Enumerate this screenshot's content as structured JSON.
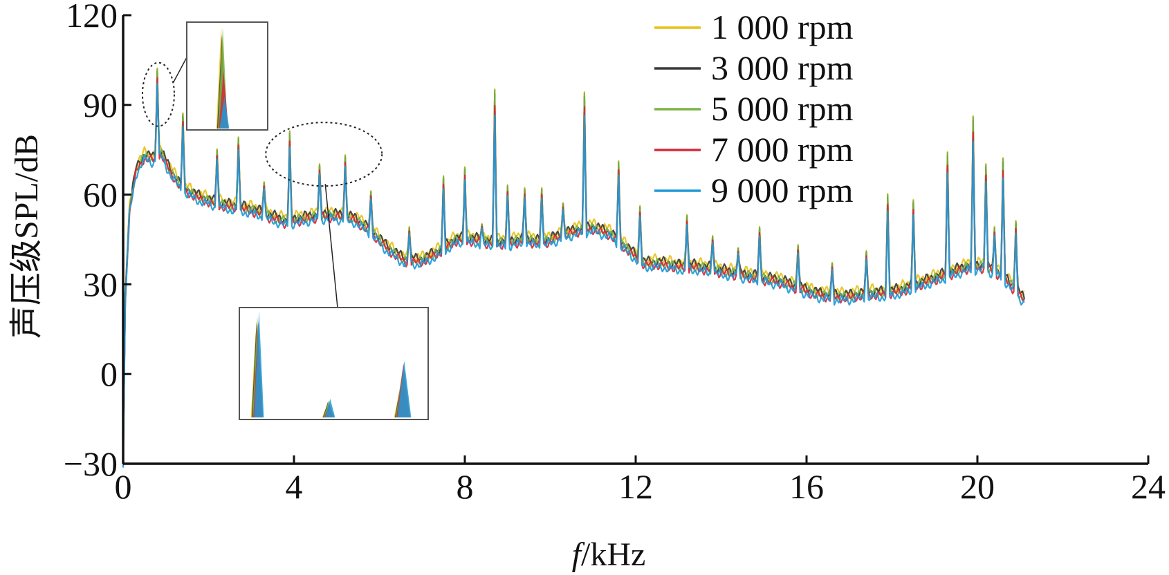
{
  "chart_data": {
    "type": "line",
    "xlabel_italic": "f",
    "xlabel_rest": "/kHz",
    "ylabel": "声压级SPL/dB",
    "xlim": [
      0,
      24
    ],
    "ylim": [
      -30,
      120
    ],
    "x_ticks": [
      "0",
      "4",
      "8",
      "12",
      "16",
      "20",
      "24"
    ],
    "y_ticks": [
      "−30",
      "0",
      "30",
      "60",
      "90",
      "120"
    ],
    "grid": false,
    "legend_position": "top-right",
    "baseline": [
      [
        0,
        -30
      ],
      [
        0.05,
        25
      ],
      [
        0.15,
        55
      ],
      [
        0.3,
        68
      ],
      [
        0.5,
        73
      ],
      [
        0.7,
        72
      ],
      [
        0.9,
        74
      ],
      [
        1.1,
        68
      ],
      [
        1.4,
        62
      ],
      [
        1.8,
        59
      ],
      [
        2.2,
        57
      ],
      [
        2.6,
        56
      ],
      [
        3.0,
        55
      ],
      [
        3.4,
        53
      ],
      [
        3.8,
        51
      ],
      [
        4.2,
        52
      ],
      [
        4.6,
        53
      ],
      [
        5.0,
        53
      ],
      [
        5.4,
        52
      ],
      [
        5.8,
        48
      ],
      [
        6.2,
        42
      ],
      [
        6.6,
        38
      ],
      [
        7.0,
        38
      ],
      [
        7.4,
        41
      ],
      [
        7.8,
        45
      ],
      [
        8.2,
        45
      ],
      [
        8.6,
        44
      ],
      [
        9.0,
        44
      ],
      [
        9.4,
        45
      ],
      [
        9.8,
        44
      ],
      [
        10.2,
        46
      ],
      [
        10.6,
        48
      ],
      [
        11.0,
        49
      ],
      [
        11.4,
        47
      ],
      [
        11.8,
        42
      ],
      [
        12.2,
        37
      ],
      [
        12.6,
        37
      ],
      [
        13.0,
        36
      ],
      [
        13.4,
        36
      ],
      [
        13.8,
        35
      ],
      [
        14.2,
        34
      ],
      [
        14.6,
        33
      ],
      [
        15.0,
        32
      ],
      [
        15.4,
        31
      ],
      [
        15.8,
        29
      ],
      [
        16.2,
        27
      ],
      [
        16.6,
        26
      ],
      [
        17.0,
        26
      ],
      [
        17.4,
        27
      ],
      [
        17.8,
        27
      ],
      [
        18.2,
        28
      ],
      [
        18.6,
        30
      ],
      [
        19.0,
        32
      ],
      [
        19.4,
        34
      ],
      [
        19.8,
        36
      ],
      [
        20.2,
        36
      ],
      [
        20.6,
        33
      ],
      [
        20.9,
        28
      ],
      [
        21.1,
        25
      ]
    ],
    "peaks": [
      [
        0.8,
        102
      ],
      [
        1.4,
        87
      ],
      [
        2.2,
        75
      ],
      [
        2.7,
        79
      ],
      [
        3.3,
        64
      ],
      [
        3.9,
        81
      ],
      [
        4.6,
        70
      ],
      [
        5.2,
        73
      ],
      [
        5.8,
        61
      ],
      [
        6.7,
        49
      ],
      [
        7.5,
        66
      ],
      [
        8.0,
        69
      ],
      [
        8.4,
        50
      ],
      [
        8.7,
        95
      ],
      [
        9.0,
        63
      ],
      [
        9.4,
        62
      ],
      [
        9.8,
        62
      ],
      [
        10.3,
        57
      ],
      [
        10.8,
        94
      ],
      [
        11.6,
        71
      ],
      [
        12.1,
        56
      ],
      [
        13.2,
        53
      ],
      [
        13.8,
        46
      ],
      [
        14.4,
        42
      ],
      [
        14.9,
        49
      ],
      [
        15.8,
        43
      ],
      [
        16.6,
        37
      ],
      [
        17.4,
        41
      ],
      [
        17.9,
        60
      ],
      [
        18.5,
        58
      ],
      [
        19.3,
        74
      ],
      [
        19.9,
        86
      ],
      [
        20.2,
        70
      ],
      [
        20.4,
        49
      ],
      [
        20.6,
        72
      ],
      [
        20.9,
        51
      ]
    ],
    "series": [
      {
        "name": "1 000 rpm",
        "color": "#e8c21a",
        "offset": 1.5,
        "peak_scale": 1.0
      },
      {
        "name": "3 000 rpm",
        "color": "#3a3a3a",
        "offset": 0.8,
        "peak_scale": 0.97
      },
      {
        "name": "5 000 rpm",
        "color": "#7cb342",
        "offset": 0.0,
        "peak_scale": 1.0
      },
      {
        "name": "7 000 rpm",
        "color": "#d8283a",
        "offset": -0.7,
        "peak_scale": 0.9
      },
      {
        "name": "9 000 rpm",
        "color": "#1e9bd7",
        "offset": -1.3,
        "peak_scale": 0.84
      }
    ],
    "annotations": [
      {
        "type": "zoom-inset",
        "target_x_range": [
          0.55,
          1.1
        ],
        "target_y_range": [
          82,
          105
        ]
      },
      {
        "type": "zoom-inset",
        "target_x_range": [
          3.6,
          5.8
        ],
        "target_y_range": [
          62,
          85
        ]
      }
    ]
  }
}
